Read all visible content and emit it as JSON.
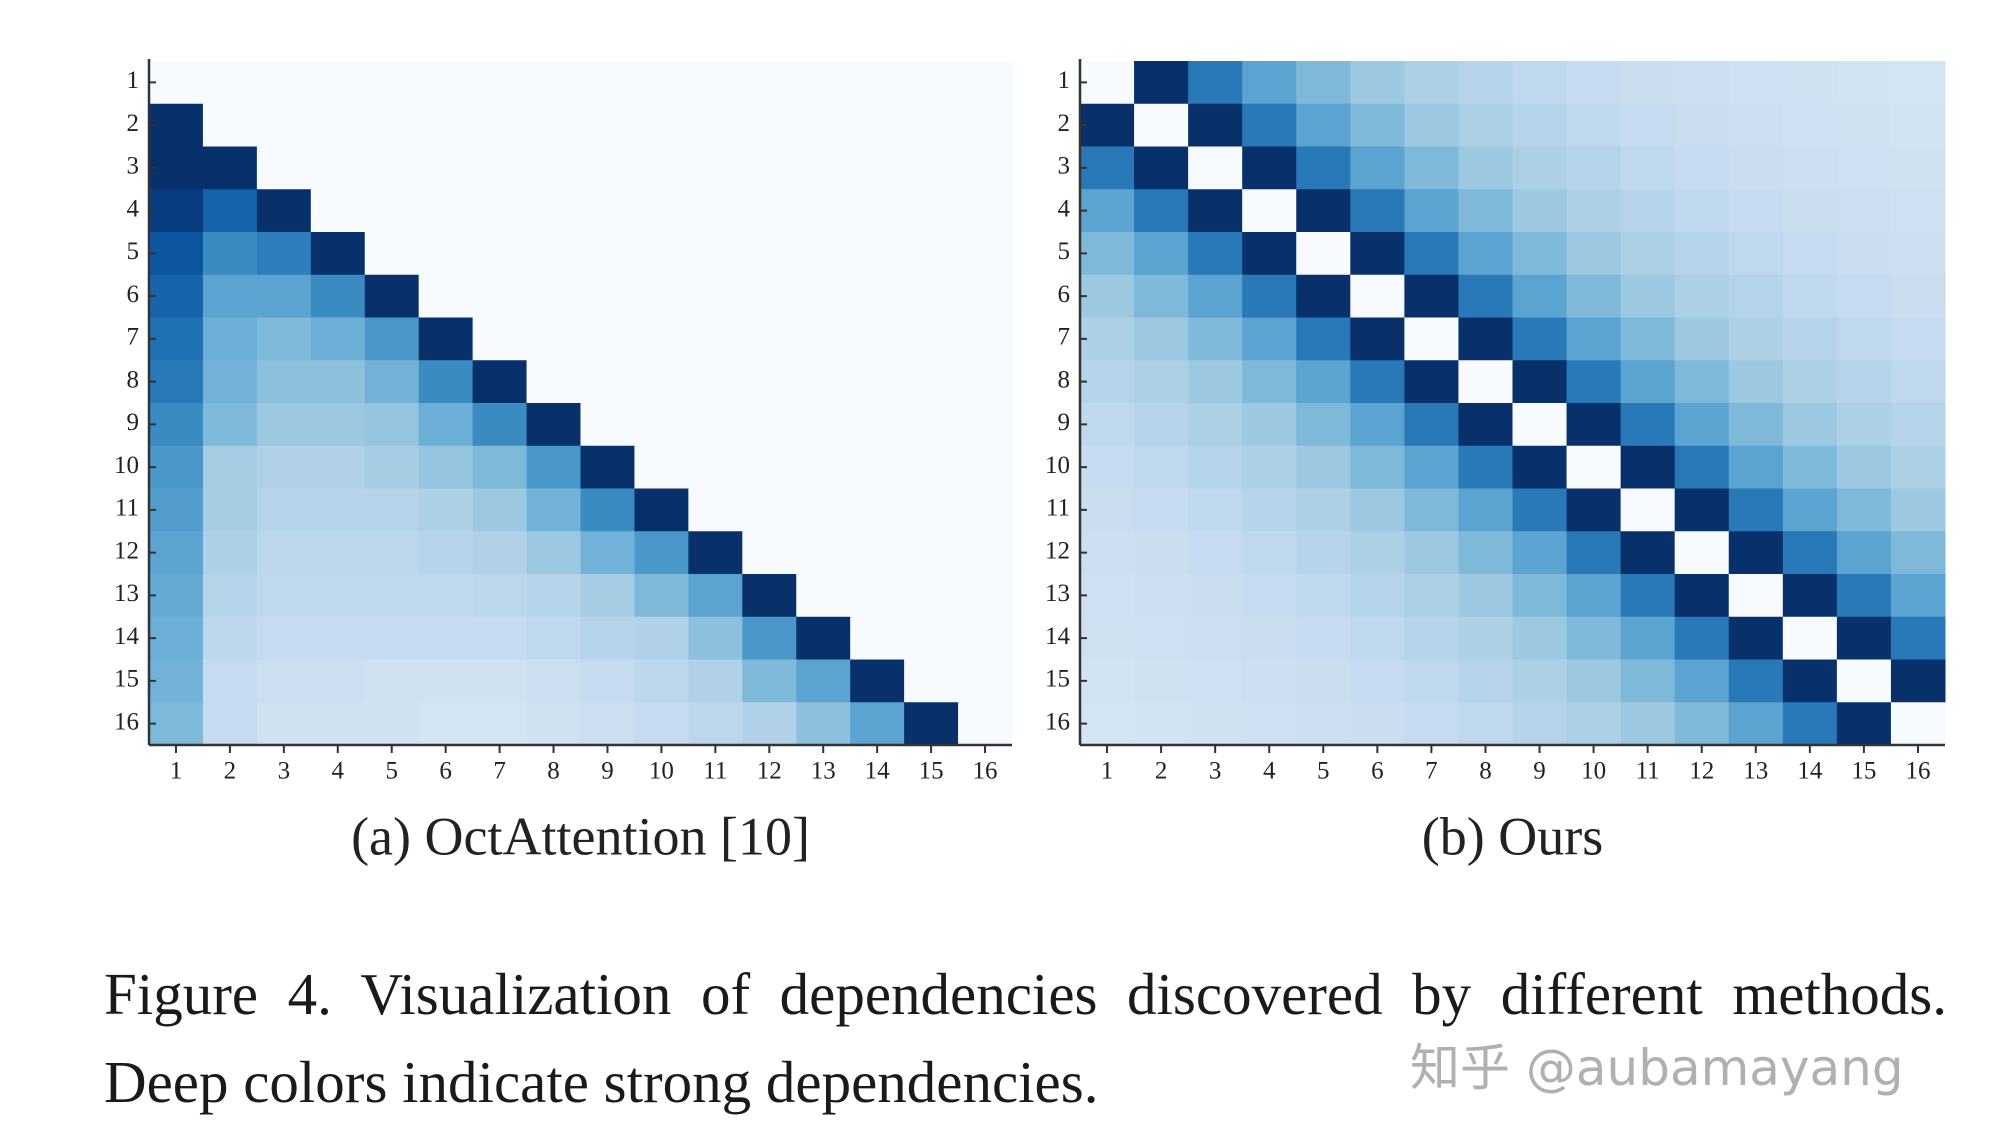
{
  "chart_data": [
    {
      "type": "heatmap",
      "title": "(a) OctAttention [10]",
      "colormap": "Blues",
      "x": [
        1,
        2,
        3,
        4,
        5,
        6,
        7,
        8,
        9,
        10,
        11,
        12,
        13,
        14,
        15,
        16
      ],
      "y": [
        1,
        2,
        3,
        4,
        5,
        6,
        7,
        8,
        9,
        10,
        11,
        12,
        13,
        14,
        15,
        16
      ],
      "values": [
        [
          0,
          0,
          0,
          0,
          0,
          0,
          0,
          0,
          0,
          0,
          0,
          0,
          0,
          0,
          0,
          0
        ],
        [
          1,
          0,
          0,
          0,
          0,
          0,
          0,
          0,
          0,
          0,
          0,
          0,
          0,
          0,
          0,
          0
        ],
        [
          1,
          1,
          0,
          0,
          0,
          0,
          0,
          0,
          0,
          0,
          0,
          0,
          0,
          0,
          0,
          0
        ],
        [
          0.95,
          0.8,
          1,
          0,
          0,
          0,
          0,
          0,
          0,
          0,
          0,
          0,
          0,
          0,
          0,
          0
        ],
        [
          0.85,
          0.65,
          0.7,
          1,
          0,
          0,
          0,
          0,
          0,
          0,
          0,
          0,
          0,
          0,
          0,
          0
        ],
        [
          0.8,
          0.55,
          0.55,
          0.65,
          1,
          0,
          0,
          0,
          0,
          0,
          0,
          0,
          0,
          0,
          0,
          0
        ],
        [
          0.75,
          0.5,
          0.45,
          0.5,
          0.6,
          1,
          0,
          0,
          0,
          0,
          0,
          0,
          0,
          0,
          0,
          0
        ],
        [
          0.72,
          0.48,
          0.42,
          0.42,
          0.48,
          0.65,
          1,
          0,
          0,
          0,
          0,
          0,
          0,
          0,
          0,
          0
        ],
        [
          0.65,
          0.45,
          0.38,
          0.38,
          0.4,
          0.5,
          0.65,
          1,
          0,
          0,
          0,
          0,
          0,
          0,
          0,
          0
        ],
        [
          0.6,
          0.35,
          0.32,
          0.32,
          0.35,
          0.4,
          0.45,
          0.6,
          1,
          0,
          0,
          0,
          0,
          0,
          0,
          0
        ],
        [
          0.58,
          0.35,
          0.3,
          0.3,
          0.3,
          0.33,
          0.38,
          0.48,
          0.65,
          1,
          0,
          0,
          0,
          0,
          0,
          0
        ],
        [
          0.55,
          0.33,
          0.28,
          0.28,
          0.28,
          0.3,
          0.32,
          0.38,
          0.48,
          0.6,
          1,
          0,
          0,
          0,
          0,
          0
        ],
        [
          0.52,
          0.3,
          0.27,
          0.27,
          0.27,
          0.27,
          0.28,
          0.3,
          0.35,
          0.45,
          0.55,
          1,
          0,
          0,
          0,
          0
        ],
        [
          0.5,
          0.28,
          0.25,
          0.25,
          0.25,
          0.25,
          0.25,
          0.27,
          0.3,
          0.32,
          0.42,
          0.6,
          1,
          0,
          0,
          0
        ],
        [
          0.48,
          0.25,
          0.22,
          0.22,
          0.2,
          0.2,
          0.2,
          0.22,
          0.25,
          0.28,
          0.32,
          0.45,
          0.55,
          1,
          0,
          0
        ],
        [
          0.45,
          0.25,
          0.2,
          0.2,
          0.2,
          0.18,
          0.18,
          0.2,
          0.22,
          0.25,
          0.28,
          0.32,
          0.42,
          0.55,
          1,
          0
        ]
      ]
    },
    {
      "type": "heatmap",
      "title": "(b) Ours",
      "colormap": "Blues",
      "x": [
        1,
        2,
        3,
        4,
        5,
        6,
        7,
        8,
        9,
        10,
        11,
        12,
        13,
        14,
        15,
        16
      ],
      "y": [
        1,
        2,
        3,
        4,
        5,
        6,
        7,
        8,
        9,
        10,
        11,
        12,
        13,
        14,
        15,
        16
      ],
      "values": [
        [
          0,
          1,
          0.72,
          0.55,
          0.45,
          0.38,
          0.33,
          0.3,
          0.27,
          0.25,
          0.23,
          0.22,
          0.21,
          0.2,
          0.19,
          0.18
        ],
        [
          1,
          0,
          1,
          0.72,
          0.55,
          0.45,
          0.38,
          0.33,
          0.3,
          0.27,
          0.25,
          0.23,
          0.22,
          0.21,
          0.2,
          0.19
        ],
        [
          0.72,
          1,
          0,
          1,
          0.72,
          0.55,
          0.45,
          0.38,
          0.33,
          0.3,
          0.27,
          0.25,
          0.23,
          0.22,
          0.21,
          0.2
        ],
        [
          0.55,
          0.72,
          1,
          0,
          1,
          0.72,
          0.55,
          0.45,
          0.38,
          0.33,
          0.3,
          0.27,
          0.25,
          0.23,
          0.22,
          0.21
        ],
        [
          0.45,
          0.55,
          0.72,
          1,
          0,
          1,
          0.72,
          0.55,
          0.45,
          0.38,
          0.33,
          0.3,
          0.27,
          0.25,
          0.23,
          0.22
        ],
        [
          0.38,
          0.45,
          0.55,
          0.72,
          1,
          0,
          1,
          0.72,
          0.55,
          0.45,
          0.38,
          0.33,
          0.3,
          0.27,
          0.25,
          0.23
        ],
        [
          0.33,
          0.38,
          0.45,
          0.55,
          0.72,
          1,
          0,
          1,
          0.72,
          0.55,
          0.45,
          0.38,
          0.33,
          0.3,
          0.27,
          0.25
        ],
        [
          0.3,
          0.33,
          0.38,
          0.45,
          0.55,
          0.72,
          1,
          0,
          1,
          0.72,
          0.55,
          0.45,
          0.38,
          0.33,
          0.3,
          0.27
        ],
        [
          0.27,
          0.3,
          0.33,
          0.38,
          0.45,
          0.55,
          0.72,
          1,
          0,
          1,
          0.72,
          0.55,
          0.45,
          0.38,
          0.33,
          0.3
        ],
        [
          0.25,
          0.27,
          0.3,
          0.33,
          0.38,
          0.45,
          0.55,
          0.72,
          1,
          0,
          1,
          0.72,
          0.55,
          0.45,
          0.38,
          0.33
        ],
        [
          0.23,
          0.25,
          0.27,
          0.3,
          0.33,
          0.38,
          0.45,
          0.55,
          0.72,
          1,
          0,
          1,
          0.72,
          0.55,
          0.45,
          0.38
        ],
        [
          0.22,
          0.23,
          0.25,
          0.27,
          0.3,
          0.33,
          0.38,
          0.45,
          0.55,
          0.72,
          1,
          0,
          1,
          0.72,
          0.55,
          0.45
        ],
        [
          0.21,
          0.22,
          0.23,
          0.25,
          0.27,
          0.3,
          0.33,
          0.38,
          0.45,
          0.55,
          0.72,
          1,
          0,
          1,
          0.72,
          0.55
        ],
        [
          0.2,
          0.21,
          0.22,
          0.23,
          0.25,
          0.27,
          0.3,
          0.33,
          0.38,
          0.45,
          0.55,
          0.72,
          1,
          0,
          1,
          0.72
        ],
        [
          0.19,
          0.2,
          0.21,
          0.22,
          0.23,
          0.25,
          0.27,
          0.3,
          0.33,
          0.38,
          0.45,
          0.55,
          0.72,
          1,
          0,
          1
        ],
        [
          0.18,
          0.19,
          0.2,
          0.21,
          0.22,
          0.23,
          0.25,
          0.27,
          0.3,
          0.33,
          0.38,
          0.45,
          0.55,
          0.72,
          1,
          0
        ]
      ]
    }
  ],
  "caption": "Figure 4.  Visualization of dependencies discovered by different methods. Deep colors indicate strong dependencies.",
  "watermark": "知乎 @aubamayang"
}
